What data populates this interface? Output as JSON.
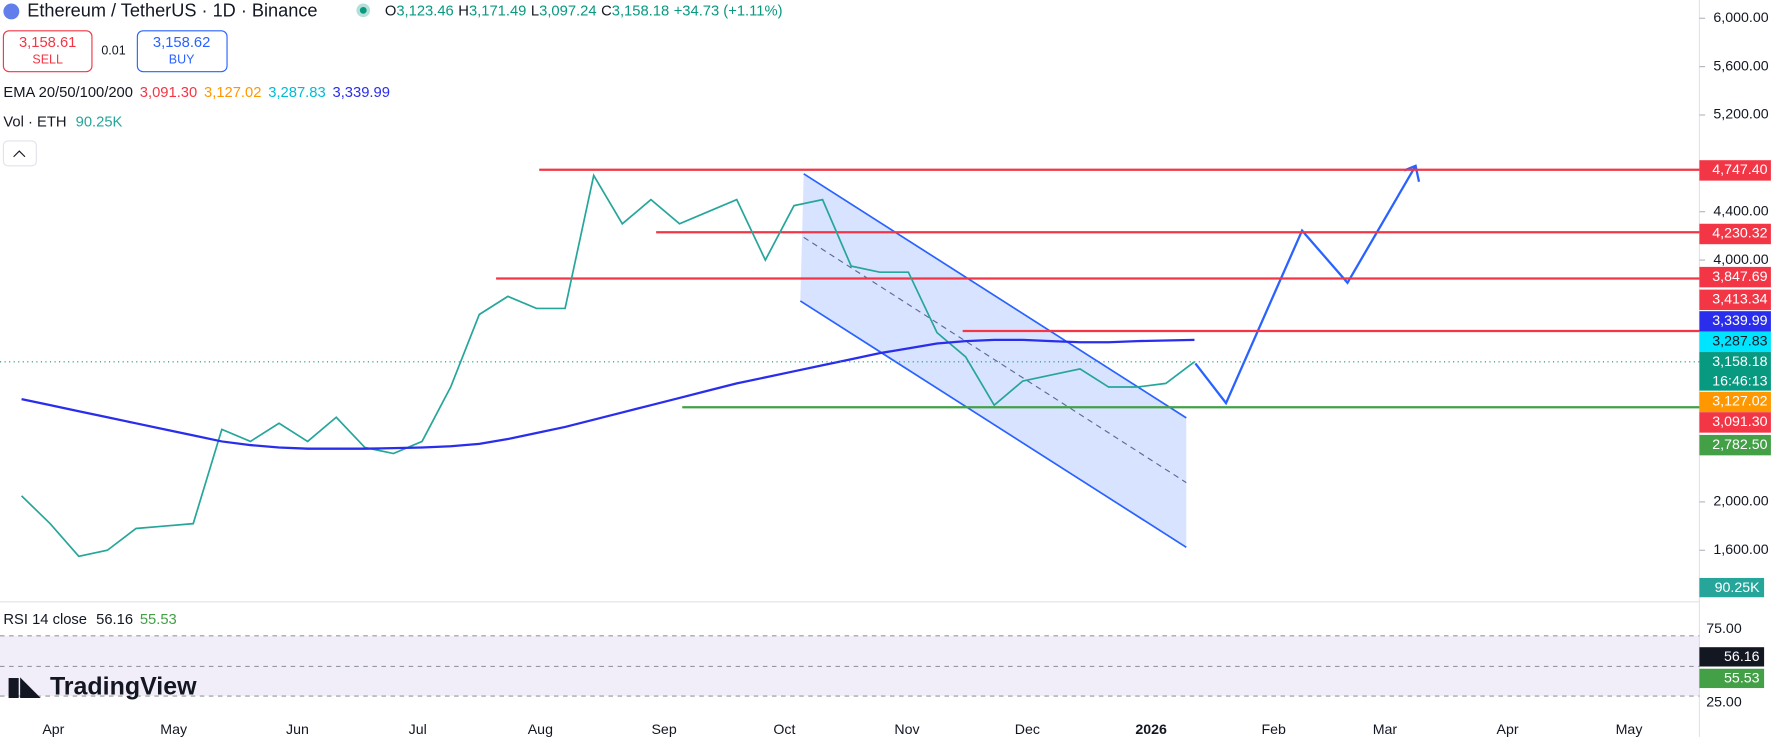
{
  "header": {
    "symbol": "Ethereum / TetherUS · 1D · Binance",
    "open_label": "O",
    "open": "3,123.46",
    "high_label": "H",
    "high": "3,171.49",
    "low_label": "L",
    "low": "3,097.24",
    "close_label": "C",
    "close": "3,158.18",
    "change": "+34.73 (+1.11%)"
  },
  "trade": {
    "sell_price": "3,158.61",
    "sell": "SELL",
    "spread": "0.01",
    "buy_price": "3,158.62",
    "buy": "BUY"
  },
  "ema_legend": {
    "label": "EMA 20/50/100/200",
    "values": [
      "3,091.30",
      "3,127.02",
      "3,287.83",
      "3,339.99"
    ]
  },
  "vol_legend": {
    "label": "Vol · ETH",
    "value": "90.25K"
  },
  "chart_data": {
    "type": "line",
    "series": [
      {
        "color": "#26a69a",
        "values": [
          2050,
          1820,
          1550,
          1600,
          1780,
          1800,
          1820,
          2600,
          2500,
          2650,
          2500,
          2700,
          2450,
          2400,
          2500,
          2950,
          3550,
          3700,
          3600,
          3600,
          4700,
          4300,
          4500,
          4300,
          4400,
          4500,
          4000,
          4450,
          4500,
          3950,
          3900,
          3900,
          3400,
          3200,
          2800,
          3000,
          3050,
          3100,
          2950,
          2950,
          2980,
          3158.18
        ]
      },
      {
        "color": "#2a2eec",
        "values": [
          2850,
          2800,
          2750,
          2700,
          2650,
          2600,
          2550,
          2500,
          2470,
          2450,
          2440,
          2440,
          2440,
          2445,
          2450,
          2460,
          2480,
          2520,
          2570,
          2620,
          2680,
          2740,
          2800,
          2860,
          2920,
          2980,
          3030,
          3080,
          3130,
          3180,
          3230,
          3270,
          3310,
          3330,
          3340,
          3340,
          3330,
          3320,
          3320,
          3330,
          3335,
          3339.99
        ]
      }
    ],
    "ylim": [
      1202,
      6150
    ],
    "yticks": [
      {
        "value": 6000,
        "label": "6,000.00"
      },
      {
        "value": 5600,
        "label": "5,600.00"
      },
      {
        "value": 5200,
        "label": "5,200.00"
      },
      {
        "value": 4400,
        "label": "4,400.00"
      },
      {
        "value": 4000,
        "label": "4,000.00"
      },
      {
        "value": 2000,
        "label": "2,000.00"
      },
      {
        "value": 1600,
        "label": "1,600.00"
      }
    ],
    "levels": [
      {
        "value": 4747.4,
        "label": "4,747.40",
        "color": "#f23645"
      },
      {
        "value": 4230.32,
        "label": "4,230.32",
        "color": "#f23645"
      },
      {
        "value": 3847.69,
        "label": "3,847.69",
        "color": "#f23645"
      },
      {
        "value": 3413.34,
        "label": "3,413.34",
        "color": "#f23645"
      },
      {
        "value": 2782.5,
        "label": "2,782.50",
        "color": "#43a047"
      }
    ],
    "price_labels": [
      {
        "value": 3339.99,
        "label": "3,339.99",
        "color": "#2a2eec"
      },
      {
        "value": 3287.83,
        "label": "3,287.83",
        "color": "#00e5ff"
      },
      {
        "value": 3158.18,
        "label": "3,158.18",
        "color": "#089981"
      },
      {
        "value": 3127.02,
        "label": "3,127.02",
        "color": "#ff9800"
      },
      {
        "value": 3091.3,
        "label": "3,091.30",
        "color": "#f23645"
      }
    ],
    "countdown": "16:46:13",
    "months": [
      "Apr",
      "May",
      "Jun",
      "Jul",
      "Aug",
      "Sep",
      "Oct",
      "Nov",
      "Dec",
      "2026",
      "Feb",
      "Mar",
      "Apr",
      "May"
    ]
  },
  "rsi": {
    "label": "RSI 14 close",
    "values": [
      "56.16",
      "55.53"
    ],
    "ticks": [
      "75.00",
      "25.00"
    ]
  },
  "watermark": "TradingView"
}
